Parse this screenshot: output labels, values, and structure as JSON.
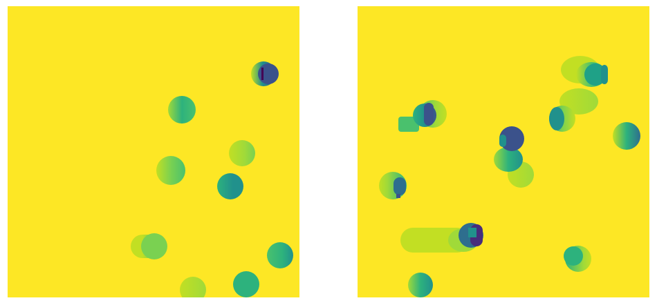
{
  "palette": {
    "background": "#fde725",
    "pale_green": "#c2df23",
    "lime": "#a0da39",
    "light_green": "#7ad151",
    "green": "#4ac16d",
    "mint": "#2db27d",
    "teal": "#1fa187",
    "teal_dark": "#21918c",
    "blue_teal": "#277f8e",
    "steel_blue": "#2e6e8e",
    "indigo": "#3b528b",
    "dark_indigo": "#472d7b",
    "deep_purple": "#440154"
  },
  "panels": [
    {
      "name": "panel-left",
      "description_hidden": ""
    },
    {
      "name": "panel-right",
      "description_hidden": ""
    }
  ]
}
